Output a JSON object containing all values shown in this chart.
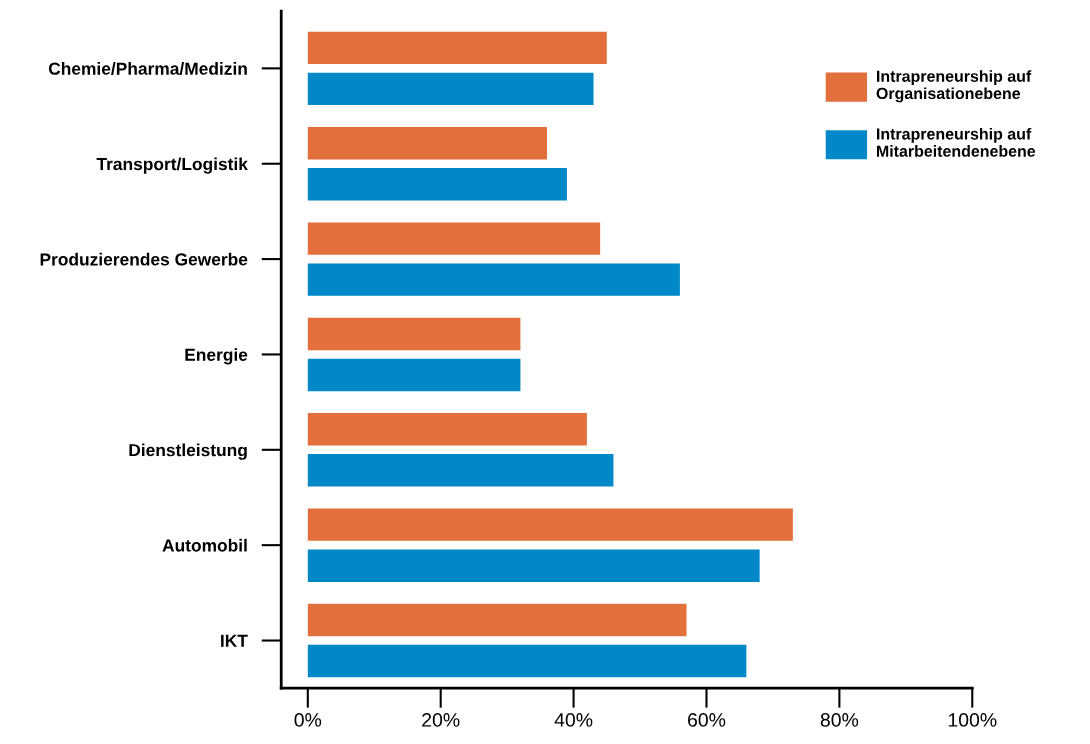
{
  "chart_data": {
    "type": "bar",
    "orientation": "horizontal",
    "categories": [
      "Chemie/Pharma/Medizin",
      "Transport/Logistik",
      "Produzierendes Gewerbe",
      "Energie",
      "Dienstleistung",
      "Automobil",
      "IKT"
    ],
    "series": [
      {
        "name": "Intrapreneurship auf Organisationebene",
        "color": "#e36f3c",
        "values": [
          45,
          36,
          44,
          32,
          42,
          73,
          57
        ]
      },
      {
        "name": "Intrapreneurship auf Mitarbeitendenebene",
        "color": "#0088c8",
        "values": [
          43,
          39,
          56,
          32,
          46,
          68,
          66
        ]
      }
    ],
    "xlim": [
      -4,
      100
    ],
    "xticks": [
      {
        "value": 0,
        "label": "0%"
      },
      {
        "value": 20,
        "label": "20%"
      },
      {
        "value": 40,
        "label": "40%"
      },
      {
        "value": 60,
        "label": "60%"
      },
      {
        "value": 80,
        "label": "80%"
      },
      {
        "value": 100,
        "label": "100%"
      }
    ],
    "grid": false,
    "legend": "top right"
  }
}
